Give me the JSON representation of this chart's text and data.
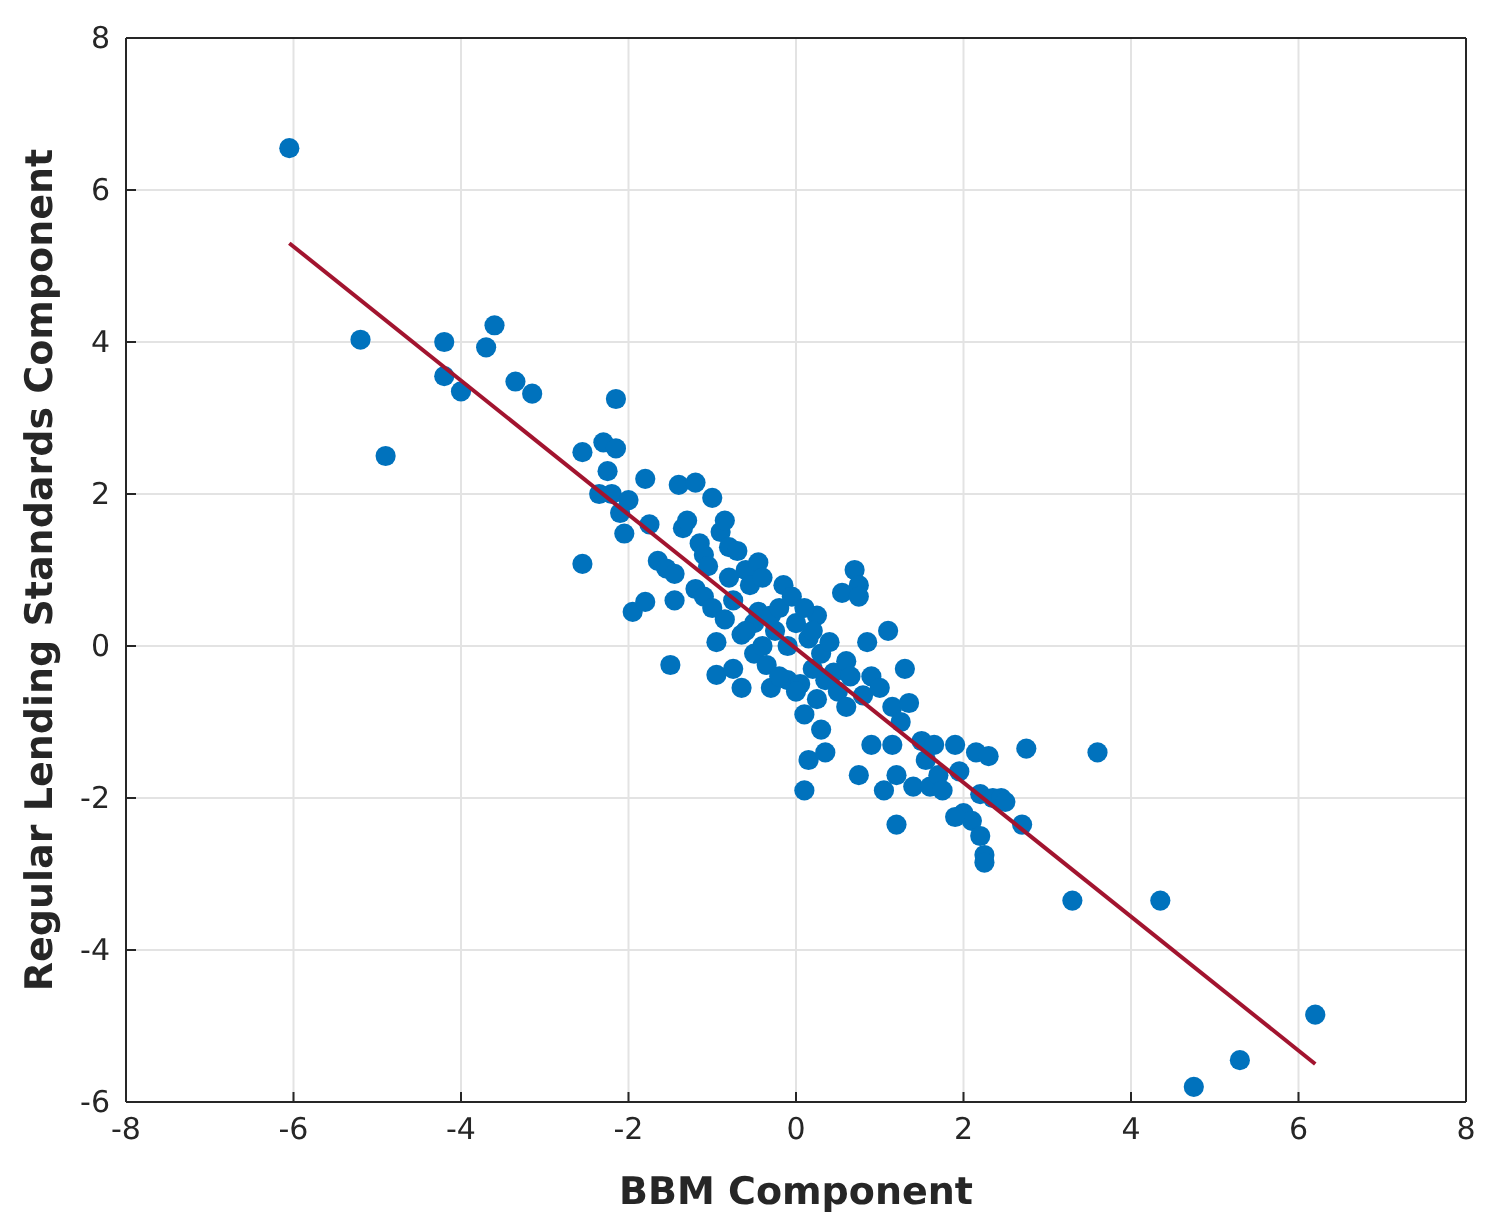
{
  "chart_data": {
    "type": "scatter",
    "xlabel": "BBM Component",
    "ylabel": "Regular Lending Standards Component",
    "xlim": [
      -8,
      8
    ],
    "ylim": [
      -6,
      8
    ],
    "xticks": [
      -8,
      -6,
      -4,
      -2,
      0,
      2,
      4,
      6,
      8
    ],
    "yticks": [
      -6,
      -4,
      -2,
      0,
      2,
      4,
      6,
      8
    ],
    "grid": true,
    "series": [
      {
        "marker": "circle",
        "color": "#0072bd",
        "x": [
          -6.05,
          -5.2,
          -4.9,
          -4.2,
          -4.2,
          -4.0,
          -3.7,
          -3.6,
          -3.35,
          -3.15,
          -2.55,
          -2.55,
          -2.35,
          -2.3,
          -2.25,
          -2.2,
          -2.15,
          -2.15,
          -2.1,
          -2.05,
          -2.0,
          -1.95,
          -1.8,
          -1.8,
          -1.75,
          -1.65,
          -1.55,
          -1.5,
          -1.45,
          -1.45,
          -1.4,
          -1.35,
          -1.3,
          -1.2,
          -1.2,
          -1.15,
          -1.1,
          -1.1,
          -1.05,
          -1.0,
          -1.0,
          -0.95,
          -0.95,
          -0.9,
          -0.85,
          -0.85,
          -0.8,
          -0.75,
          -0.75,
          -0.7,
          -0.65,
          -0.65,
          -0.6,
          -0.55,
          -0.5,
          -0.45,
          -0.45,
          -0.4,
          -0.35,
          -0.3,
          -0.3,
          -0.25,
          -0.2,
          -0.15,
          -0.1,
          -0.1,
          -0.05,
          0.0,
          0.05,
          0.1,
          0.1,
          0.15,
          0.15,
          0.2,
          0.25,
          0.25,
          0.3,
          0.3,
          0.35,
          0.4,
          0.45,
          0.5,
          0.55,
          0.6,
          0.6,
          0.65,
          0.7,
          0.75,
          0.75,
          0.75,
          0.8,
          0.85,
          0.9,
          0.9,
          1.0,
          1.05,
          1.1,
          1.15,
          1.15,
          1.2,
          1.2,
          1.25,
          1.3,
          1.35,
          1.4,
          1.5,
          1.55,
          1.6,
          1.65,
          1.7,
          1.75,
          1.9,
          1.95,
          2.0,
          2.1,
          2.15,
          2.2,
          2.2,
          2.25,
          2.25,
          2.3,
          2.35,
          2.45,
          2.5,
          2.7,
          2.75,
          3.3,
          3.6,
          4.35,
          4.75,
          5.3,
          6.2,
          -0.5,
          -0.2,
          0.0,
          0.2,
          0.35,
          -0.6,
          -0.4,
          0.1,
          -0.8,
          1.9
        ],
        "values": [
          6.55,
          4.03,
          2.5,
          4.0,
          3.55,
          3.35,
          3.93,
          4.22,
          3.48,
          3.32,
          2.55,
          1.08,
          2.0,
          2.68,
          2.3,
          2.0,
          3.25,
          2.6,
          1.75,
          1.48,
          1.92,
          0.45,
          2.2,
          0.58,
          1.6,
          1.12,
          1.02,
          -0.25,
          0.95,
          0.6,
          2.12,
          1.55,
          1.65,
          2.15,
          0.75,
          1.35,
          1.2,
          0.65,
          1.05,
          1.95,
          0.5,
          0.05,
          -0.38,
          1.5,
          1.65,
          0.35,
          1.3,
          0.6,
          -0.3,
          1.25,
          0.15,
          -0.55,
          1.0,
          0.8,
          -0.1,
          1.1,
          0.45,
          0.9,
          -0.25,
          0.4,
          -0.55,
          0.2,
          0.5,
          0.8,
          0.0,
          -0.45,
          0.65,
          0.3,
          -0.5,
          -0.9,
          -1.9,
          0.1,
          -1.5,
          -0.3,
          0.4,
          -0.7,
          -0.1,
          -1.1,
          -1.4,
          0.05,
          -0.35,
          -0.6,
          0.7,
          -0.2,
          -0.8,
          -0.4,
          1.0,
          0.8,
          0.65,
          -1.7,
          -0.65,
          0.05,
          -0.4,
          -1.3,
          -0.55,
          -1.9,
          0.2,
          -0.8,
          -1.3,
          -2.35,
          -1.7,
          -1.0,
          -0.3,
          -0.75,
          -1.85,
          -1.25,
          -1.5,
          -1.85,
          -1.3,
          -1.7,
          -1.9,
          -1.3,
          -1.65,
          -2.2,
          -2.3,
          -1.4,
          -2.5,
          -1.95,
          -2.75,
          -2.85,
          -1.45,
          -2.0,
          -2.0,
          -2.05,
          -2.35,
          -1.35,
          -3.35,
          -1.4,
          -3.35,
          -5.8,
          -5.45,
          -4.85,
          0.3,
          -0.4,
          -0.6,
          0.2,
          -0.45,
          0.2,
          0.0,
          0.5,
          0.9,
          -2.25
        ]
      },
      {
        "type": "line",
        "color": "#a2142f",
        "x": [
          -6.05,
          6.2
        ],
        "values": [
          5.3,
          -5.5
        ]
      }
    ]
  }
}
